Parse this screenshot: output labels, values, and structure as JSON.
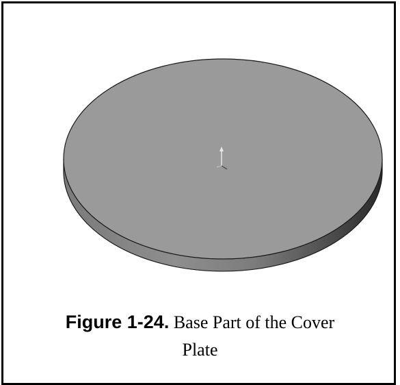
{
  "figure": {
    "label": "Figure 1-24.",
    "title_line1": " Base Part of the Cover",
    "title_line2": "Plate"
  },
  "colors": {
    "frame": "#000000",
    "top_face": "#9a9a9a",
    "side_light": "#8c8c8c",
    "side_dark": "#2a2a2a",
    "edge": "#1a1a1a"
  },
  "icons": {
    "origin": "origin-triad-icon"
  }
}
